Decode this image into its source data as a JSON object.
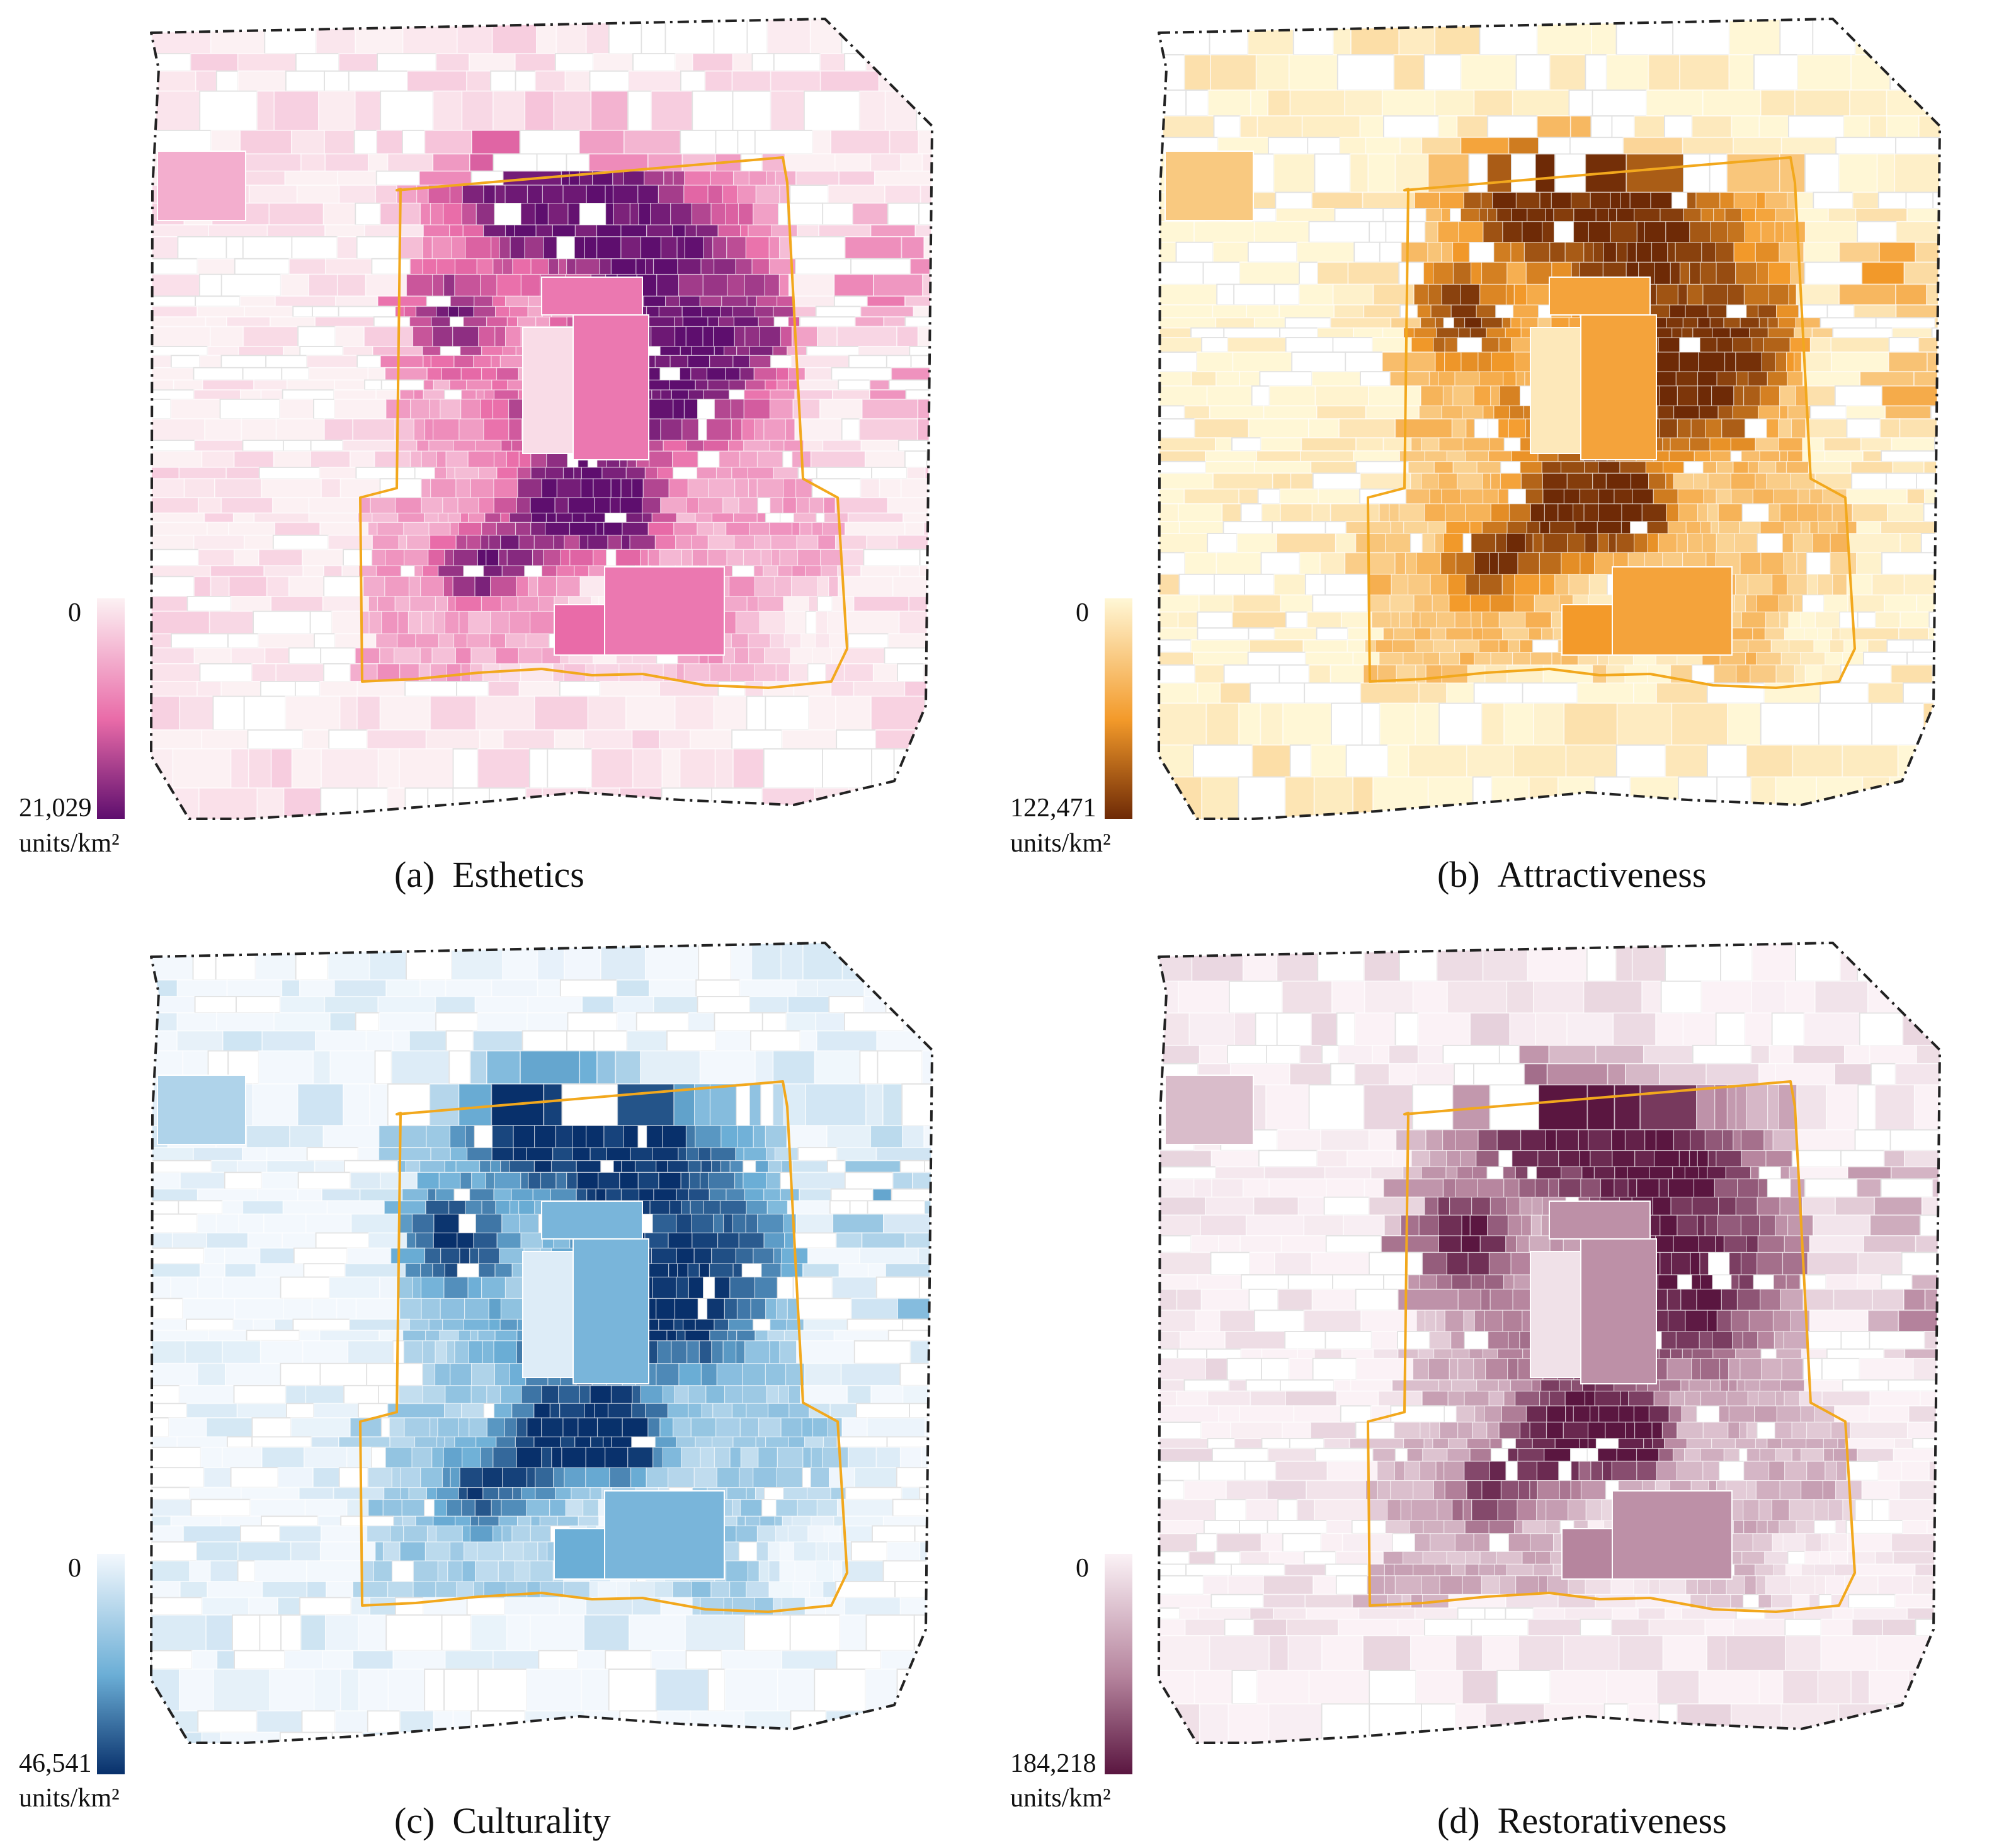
{
  "figure": {
    "boundary_color": "#222222",
    "ring_road_color": "#F2A81D",
    "panels": [
      {
        "id": "a",
        "label": "(a)",
        "title": "Esthetics",
        "legend": {
          "min": "0",
          "max": "21,029",
          "unit": "units/km²"
        },
        "colors": {
          "low": "#FCF1F3",
          "mid": "#E96BA8",
          "high": "#5E0E6E"
        }
      },
      {
        "id": "b",
        "label": "(b)",
        "title": "Attractiveness",
        "legend": {
          "min": "0",
          "max": "122,471",
          "unit": "units/km²"
        },
        "colors": {
          "low": "#FFF7D6",
          "mid": "#F39A2A",
          "high": "#6E2A06"
        }
      },
      {
        "id": "c",
        "label": "(c)",
        "title": "Culturality",
        "legend": {
          "min": "0",
          "max": "46,541",
          "unit": "units/km²"
        },
        "colors": {
          "low": "#F3F8FD",
          "mid": "#6BAED6",
          "high": "#08306B"
        }
      },
      {
        "id": "d",
        "label": "(d)",
        "title": "Restorativeness",
        "legend": {
          "min": "0",
          "max": "184,218",
          "unit": "units/km²"
        },
        "colors": {
          "low": "#FBF2F6",
          "mid": "#B6859E",
          "high": "#5A1640"
        }
      }
    ]
  }
}
